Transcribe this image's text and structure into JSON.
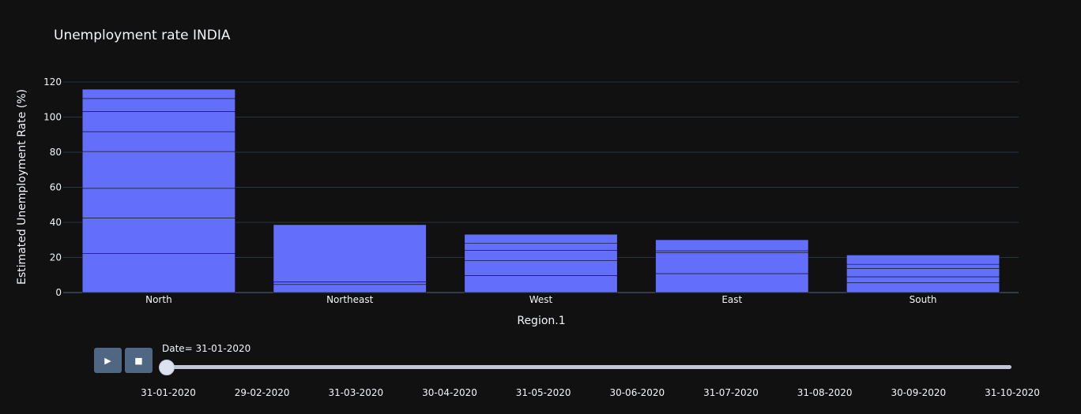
{
  "chart_data": {
    "type": "bar",
    "title": "Unemployment rate INDIA",
    "xlabel": "Region.1",
    "ylabel": "Estimated Unemployment Rate (%)",
    "ylim": [
      0,
      120
    ],
    "yticks": [
      0,
      20,
      40,
      60,
      80,
      100,
      120
    ],
    "categories": [
      "North",
      "Northeast",
      "West",
      "East",
      "South"
    ],
    "stacked_segments": [
      [
        22.2,
        20.3,
        16.9,
        21.0,
        11.3,
        11.5,
        7.4,
        5.3
      ],
      [
        4.6,
        1.5,
        32.6
      ],
      [
        9.7,
        8.6,
        5.7,
        4.0,
        5.2
      ],
      [
        10.8,
        12.0,
        1.0,
        6.3
      ],
      [
        5.7,
        3.3,
        4.7,
        2.4,
        5.3
      ]
    ],
    "totals": [
      115.9,
      38.7,
      33.2,
      30.1,
      21.4
    ],
    "bar_color": "#636efa",
    "grid": true
  },
  "slider": {
    "label": "Date= 31-01-2020",
    "steps": [
      "31-01-2020",
      "29-02-2020",
      "31-03-2020",
      "30-04-2020",
      "31-05-2020",
      "30-06-2020",
      "31-07-2020",
      "31-08-2020",
      "30-09-2020",
      "31-10-2020"
    ],
    "active_index": 0,
    "play_icon": "▶",
    "stop_icon": "■"
  },
  "colors": {
    "background": "#111111",
    "grid": "#283442",
    "bar": "#636efa",
    "button": "#506784"
  }
}
